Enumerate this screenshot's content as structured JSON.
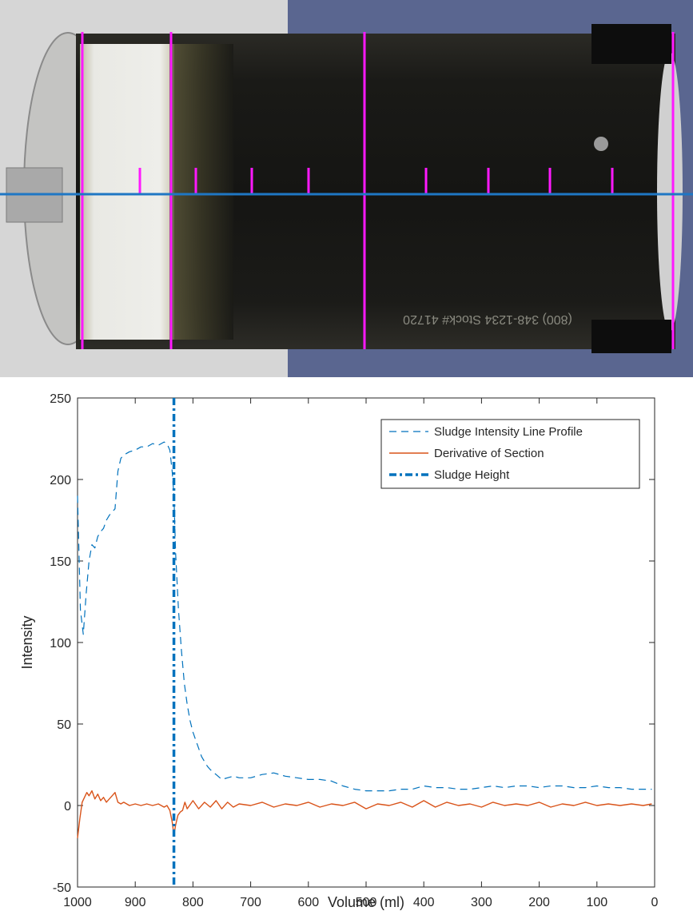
{
  "photo": {
    "label_text": "(800) 348-1234   Stock# 41720"
  },
  "chart_data": {
    "type": "line",
    "title": "",
    "xlabel": "Volume (ml)",
    "ylabel": "Intensity",
    "xlim": [
      1000,
      0
    ],
    "x_reversed": true,
    "ylim": [
      -50,
      250
    ],
    "xticks": [
      1000,
      900,
      800,
      700,
      600,
      500,
      400,
      300,
      200,
      100,
      0
    ],
    "yticks": [
      -50,
      0,
      50,
      100,
      150,
      200,
      250
    ],
    "grid": false,
    "legend_position": "top-right",
    "series": [
      {
        "name": "Sludge Intensity Line Profile",
        "style": "dashed",
        "color": "#0072BD",
        "x": [
          1000,
          995,
          990,
          985,
          980,
          975,
          970,
          965,
          960,
          955,
          950,
          945,
          940,
          935,
          930,
          925,
          920,
          910,
          900,
          890,
          880,
          870,
          860,
          850,
          845,
          840,
          836,
          833,
          830,
          825,
          820,
          815,
          810,
          805,
          800,
          795,
          790,
          785,
          780,
          775,
          770,
          760,
          750,
          740,
          730,
          720,
          700,
          680,
          660,
          640,
          620,
          600,
          580,
          560,
          540,
          520,
          500,
          480,
          460,
          440,
          420,
          400,
          380,
          360,
          340,
          320,
          300,
          280,
          260,
          240,
          220,
          200,
          180,
          160,
          140,
          120,
          100,
          80,
          60,
          40,
          20,
          5
        ],
        "y": [
          190,
          120,
          105,
          130,
          150,
          160,
          158,
          165,
          168,
          170,
          175,
          178,
          180,
          182,
          205,
          213,
          215,
          217,
          218,
          220,
          220,
          222,
          221,
          223,
          222,
          218,
          205,
          190,
          155,
          120,
          95,
          75,
          62,
          52,
          45,
          40,
          35,
          30,
          27,
          24,
          22,
          19,
          16,
          17,
          18,
          17,
          17,
          19,
          20,
          18,
          17,
          16,
          16,
          15,
          12,
          10,
          9,
          9,
          9,
          10,
          10,
          12,
          11,
          11,
          10,
          10,
          11,
          12,
          11,
          12,
          12,
          11,
          12,
          12,
          11,
          11,
          12,
          11,
          11,
          10,
          10,
          10
        ]
      },
      {
        "name": "Derivative of Section",
        "style": "solid",
        "color": "#D95319",
        "x": [
          1000,
          996,
          992,
          988,
          984,
          980,
          975,
          970,
          965,
          960,
          955,
          950,
          945,
          940,
          935,
          930,
          925,
          920,
          910,
          900,
          890,
          880,
          870,
          860,
          850,
          845,
          840,
          836,
          833,
          830,
          826,
          822,
          818,
          814,
          810,
          800,
          790,
          780,
          770,
          760,
          750,
          740,
          730,
          720,
          700,
          680,
          660,
          640,
          620,
          600,
          580,
          560,
          540,
          520,
          500,
          480,
          460,
          440,
          420,
          400,
          380,
          360,
          340,
          320,
          300,
          280,
          260,
          240,
          220,
          200,
          180,
          160,
          140,
          120,
          100,
          80,
          60,
          40,
          20,
          5
        ],
        "y": [
          -20,
          -8,
          2,
          5,
          8,
          6,
          9,
          4,
          7,
          3,
          5,
          2,
          4,
          6,
          8,
          2,
          1,
          2,
          0,
          1,
          0,
          1,
          0,
          1,
          -1,
          0,
          -3,
          -10,
          -18,
          -12,
          -6,
          -4,
          -3,
          2,
          -2,
          3,
          -2,
          2,
          -1,
          3,
          -2,
          2,
          -1,
          1,
          0,
          2,
          -1,
          1,
          0,
          2,
          -1,
          1,
          0,
          2,
          -2,
          1,
          0,
          2,
          -1,
          3,
          -1,
          2,
          0,
          1,
          -1,
          2,
          0,
          1,
          0,
          2,
          -1,
          1,
          0,
          2,
          0,
          1,
          0,
          1,
          0,
          1
        ]
      },
      {
        "name": "Sludge Height",
        "style": "dash-dot",
        "color": "#0072BD",
        "vertical_x": 833
      }
    ]
  }
}
